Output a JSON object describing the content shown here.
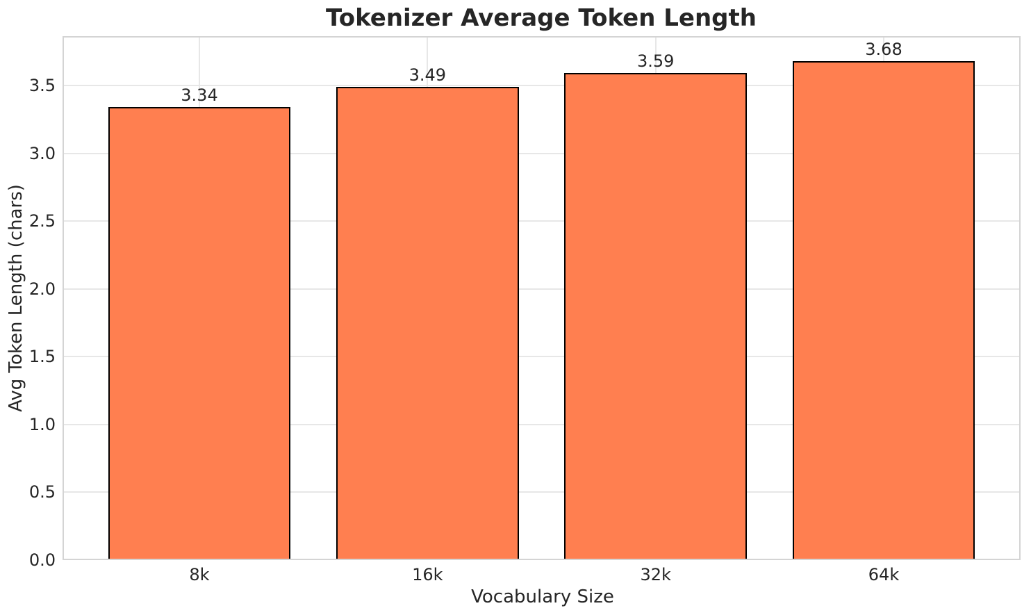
{
  "chart_data": {
    "type": "bar",
    "title": "Tokenizer Average Token Length",
    "xlabel": "Vocabulary Size",
    "ylabel": "Avg Token Length (chars)",
    "categories": [
      "8k",
      "16k",
      "32k",
      "64k"
    ],
    "values": [
      3.34,
      3.49,
      3.59,
      3.68
    ],
    "bar_labels": [
      "3.34",
      "3.49",
      "3.59",
      "3.68"
    ],
    "yticks": [
      0.0,
      0.5,
      1.0,
      1.5,
      2.0,
      2.5,
      3.0,
      3.5
    ],
    "ylim": [
      0,
      3.864
    ],
    "grid": true,
    "legend_position": "none",
    "colors": {
      "bar_fill": "#FF7F50",
      "bar_edge": "#000000",
      "grid": "#e7e7e7",
      "spine": "#d4d4d4",
      "text": "#262626",
      "background": "#ffffff"
    }
  }
}
